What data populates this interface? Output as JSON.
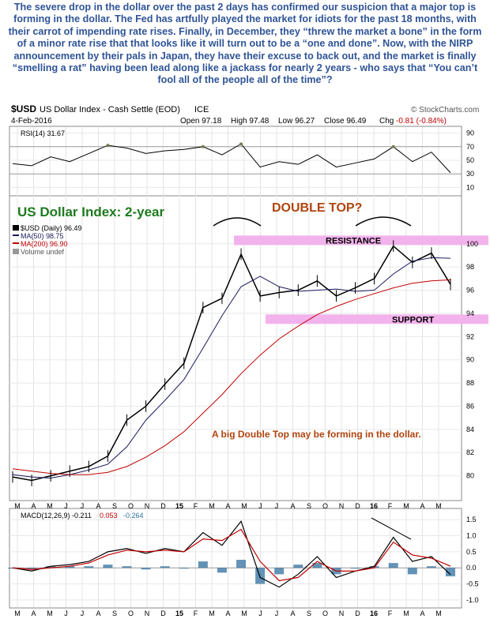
{
  "commentary": "The severe drop in the dollar over the past 2 days has confirmed our suspicion that a major top is forming in the dollar. The Fed has artfully played the market for idiots for the past 18 months, with their carrot of impending rate rises. Finally, in December, they “threw the market a bone” in the form of a minor rate rise that that looks like it will turn out to be a “one and done”. Now, with the NIRP announcement by their pals in Japan, they have their excuse to back out, and the market is finally “smelling a rat” having been lead along like a jackass for nearly 2 years - who says that “You can’t fool all of the people all of the time”?",
  "header": {
    "symbol": "$USD",
    "name": "US Dollar Index - Cash Settle (EOD)",
    "exchange": "ICE",
    "source": "© StockCharts.com",
    "date": "4-Feb-2016",
    "open": "Open 97.18",
    "high": "High 97.48",
    "low": "Low 96.27",
    "close": "Close 96.49",
    "chg_label": "Chg",
    "chg": "-0.81 (-0.84%)"
  },
  "colors": {
    "price": "#000000",
    "ma50": "#1a1a5e",
    "ma200": "#c00000",
    "title_green": "#1e7a1e",
    "annotation_brown": "#b0440e",
    "band_pink": "#f2b3ec",
    "macd_hist": "#2f6f9f",
    "rsi_fill": "#7a7a52"
  },
  "chart_data": [
    {
      "type": "line",
      "title": "US Dollar Index: 2-year",
      "legend": [
        "$USD (Daily) 96.49",
        "MA(50) 98.75",
        "MA(200) 96.90",
        "Volume undef"
      ],
      "ylim": [
        78,
        104
      ],
      "yticks": [
        80,
        82,
        84,
        86,
        88,
        90,
        92,
        94,
        96,
        98,
        100
      ],
      "xticks": [
        "M",
        "A",
        "M",
        "J",
        "J",
        "A",
        "S",
        "O",
        "N",
        "D",
        "15",
        "F",
        "M",
        "A",
        "M",
        "J",
        "J",
        "A",
        "S",
        "O",
        "N",
        "D",
        "16",
        "F",
        "M",
        "A",
        "M"
      ],
      "x": [
        "2014-03",
        "2014-04",
        "2014-05",
        "2014-06",
        "2014-07",
        "2014-08",
        "2014-09",
        "2014-10",
        "2014-11",
        "2014-12",
        "2015-01",
        "2015-02",
        "2015-03",
        "2015-04",
        "2015-05",
        "2015-06",
        "2015-07",
        "2015-08",
        "2015-09",
        "2015-10",
        "2015-11",
        "2015-12",
        "2016-01",
        "2016-02"
      ],
      "series": [
        {
          "name": "$USD",
          "values": [
            79.9,
            79.6,
            80.0,
            80.4,
            80.8,
            81.7,
            84.8,
            86.0,
            87.9,
            89.7,
            94.5,
            95.3,
            99.1,
            95.5,
            95.8,
            96.0,
            96.8,
            95.5,
            96.2,
            97.0,
            99.8,
            98.4,
            99.2,
            96.5
          ]
        },
        {
          "name": "MA(50)",
          "values": [
            80.1,
            79.9,
            79.8,
            80.1,
            80.5,
            81.0,
            82.5,
            84.8,
            86.5,
            88.3,
            91.0,
            93.8,
            96.3,
            97.2,
            96.3,
            95.9,
            96.0,
            96.1,
            95.9,
            96.0,
            97.4,
            98.5,
            98.8,
            98.75
          ]
        },
        {
          "name": "MA(200)",
          "values": [
            80.6,
            80.4,
            80.2,
            80.1,
            80.1,
            80.3,
            80.8,
            81.6,
            82.6,
            83.8,
            85.4,
            87.0,
            88.8,
            90.4,
            91.8,
            92.9,
            93.9,
            94.6,
            95.2,
            95.7,
            96.2,
            96.6,
            96.8,
            96.9
          ]
        }
      ],
      "annotations": [
        "DOUBLE TOP?",
        "RESISTANCE",
        "SUPPORT",
        "A big Double Top may be forming in the dollar."
      ],
      "resistance_level": 100.3,
      "support_level": 93.5
    },
    {
      "type": "line",
      "title": "RSI(14) 31.67",
      "ylim": [
        0,
        100
      ],
      "yticks": [
        10,
        30,
        50,
        70,
        90
      ],
      "x": [
        "2014-03",
        "2014-04",
        "2014-05",
        "2014-06",
        "2014-07",
        "2014-08",
        "2014-09",
        "2014-10",
        "2014-11",
        "2014-12",
        "2015-01",
        "2015-02",
        "2015-03",
        "2015-04",
        "2015-05",
        "2015-06",
        "2015-07",
        "2015-08",
        "2015-09",
        "2015-10",
        "2015-11",
        "2015-12",
        "2016-01",
        "2016-02"
      ],
      "values": [
        45,
        42,
        55,
        48,
        60,
        72,
        68,
        60,
        64,
        66,
        70,
        58,
        74,
        40,
        48,
        44,
        58,
        40,
        46,
        52,
        70,
        48,
        62,
        31.67
      ]
    },
    {
      "type": "line",
      "title": "MACD(12,26,9)",
      "legend": [
        "MACD(12,26,9) -0.211",
        "0.053",
        "-0.264"
      ],
      "ylim": [
        -1.2,
        1.8
      ],
      "yticks": [
        -1.0,
        -0.5,
        0.0,
        0.5,
        1.0,
        1.5
      ],
      "xticks": [
        "M",
        "A",
        "M",
        "J",
        "J",
        "A",
        "S",
        "O",
        "N",
        "D",
        "15",
        "F",
        "M",
        "A",
        "M",
        "J",
        "J",
        "A",
        "S",
        "O",
        "N",
        "D",
        "16",
        "F",
        "M",
        "A",
        "M"
      ],
      "x": [
        "2014-03",
        "2014-04",
        "2014-05",
        "2014-06",
        "2014-07",
        "2014-08",
        "2014-09",
        "2014-10",
        "2014-11",
        "2014-12",
        "2015-01",
        "2015-02",
        "2015-03",
        "2015-04",
        "2015-05",
        "2015-06",
        "2015-07",
        "2015-08",
        "2015-09",
        "2015-10",
        "2015-11",
        "2015-12",
        "2016-01",
        "2016-02"
      ],
      "series": [
        {
          "name": "MACD",
          "values": [
            0.0,
            -0.1,
            0.05,
            0.1,
            0.2,
            0.5,
            0.6,
            0.45,
            0.6,
            0.5,
            1.1,
            0.7,
            1.45,
            -0.3,
            -0.6,
            -0.2,
            0.35,
            -0.3,
            -0.1,
            0.05,
            0.95,
            0.2,
            0.35,
            -0.211
          ]
        },
        {
          "name": "Signal",
          "values": [
            0.0,
            -0.05,
            0.0,
            0.05,
            0.15,
            0.4,
            0.55,
            0.5,
            0.55,
            0.5,
            0.9,
            0.85,
            1.2,
            0.2,
            -0.4,
            -0.3,
            0.2,
            -0.1,
            -0.1,
            0.0,
            0.8,
            0.4,
            0.3,
            0.053
          ]
        },
        {
          "name": "Histogram",
          "values": [
            0.0,
            -0.05,
            0.05,
            0.05,
            0.05,
            0.1,
            0.05,
            -0.05,
            0.05,
            0.0,
            0.2,
            -0.15,
            0.25,
            -0.5,
            -0.2,
            0.1,
            0.15,
            -0.2,
            0.0,
            0.05,
            0.15,
            -0.2,
            0.05,
            -0.264
          ]
        }
      ]
    }
  ]
}
